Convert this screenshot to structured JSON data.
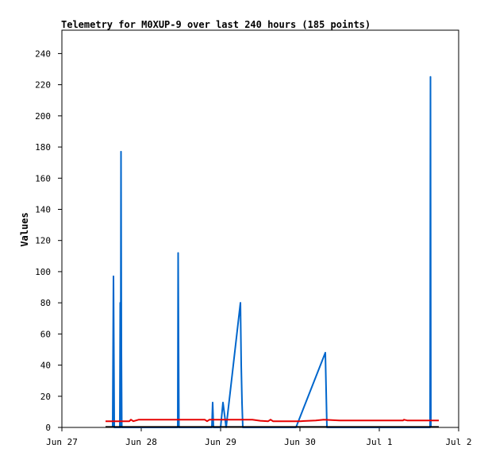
{
  "chart_data": {
    "type": "line",
    "title": "Telemetry for M0XUP-9 over last 240 hours (185 points)",
    "xlabel": "",
    "ylabel": "Values",
    "ylim": [
      0,
      255
    ],
    "xlim": [
      0,
      5
    ],
    "y_ticks": [
      0,
      20,
      40,
      60,
      80,
      100,
      120,
      140,
      160,
      180,
      200,
      220,
      240
    ],
    "x_ticks": [
      {
        "x": 0,
        "label": "Jun 27"
      },
      {
        "x": 1,
        "label": "Jun 28"
      },
      {
        "x": 2,
        "label": "Jun 29"
      },
      {
        "x": 3,
        "label": "Jun 30"
      },
      {
        "x": 4,
        "label": "Jul 1"
      },
      {
        "x": 5,
        "label": "Jul 2"
      }
    ],
    "grid": false,
    "series": [
      {
        "color": "#0066cc",
        "points": [
          [
            0.64,
            0
          ],
          [
            0.65,
            97
          ],
          [
            0.66,
            0
          ],
          [
            0.73,
            0
          ],
          [
            0.735,
            80
          ],
          [
            0.74,
            0
          ],
          [
            0.745,
            177
          ],
          [
            0.75,
            48
          ],
          [
            0.755,
            0
          ],
          [
            1.46,
            0
          ],
          [
            1.465,
            112
          ],
          [
            1.47,
            56
          ],
          [
            1.475,
            0
          ],
          [
            1.89,
            0
          ],
          [
            1.9,
            16
          ],
          [
            1.91,
            0
          ],
          [
            2.0,
            0
          ],
          [
            2.03,
            16
          ],
          [
            2.07,
            0
          ],
          [
            2.25,
            80
          ],
          [
            2.26,
            40
          ],
          [
            2.27,
            16
          ],
          [
            2.28,
            0
          ],
          [
            2.95,
            0
          ],
          [
            3.32,
            48
          ],
          [
            3.33,
            24
          ],
          [
            3.34,
            0
          ],
          [
            4.64,
            0
          ],
          [
            4.645,
            225
          ],
          [
            4.65,
            0
          ]
        ]
      },
      {
        "color": "#e60000",
        "points": [
          [
            0.55,
            4
          ],
          [
            0.85,
            4
          ],
          [
            0.87,
            5
          ],
          [
            0.9,
            4
          ],
          [
            0.97,
            5
          ],
          [
            1.8,
            5
          ],
          [
            1.83,
            4
          ],
          [
            1.86,
            5
          ],
          [
            2.2,
            5
          ],
          [
            2.4,
            5
          ],
          [
            2.5,
            4.3
          ],
          [
            2.6,
            4
          ],
          [
            2.63,
            5
          ],
          [
            2.66,
            4
          ],
          [
            3.0,
            4
          ],
          [
            3.2,
            4.5
          ],
          [
            3.3,
            5
          ],
          [
            3.5,
            4.5
          ],
          [
            3.8,
            4.5
          ],
          [
            4.3,
            4.5
          ],
          [
            4.31,
            5
          ],
          [
            4.35,
            4.5
          ],
          [
            4.75,
            4.5
          ]
        ]
      },
      {
        "color": "#000000",
        "points": [
          [
            0.55,
            0.3
          ],
          [
            4.75,
            0.3
          ]
        ]
      }
    ]
  }
}
